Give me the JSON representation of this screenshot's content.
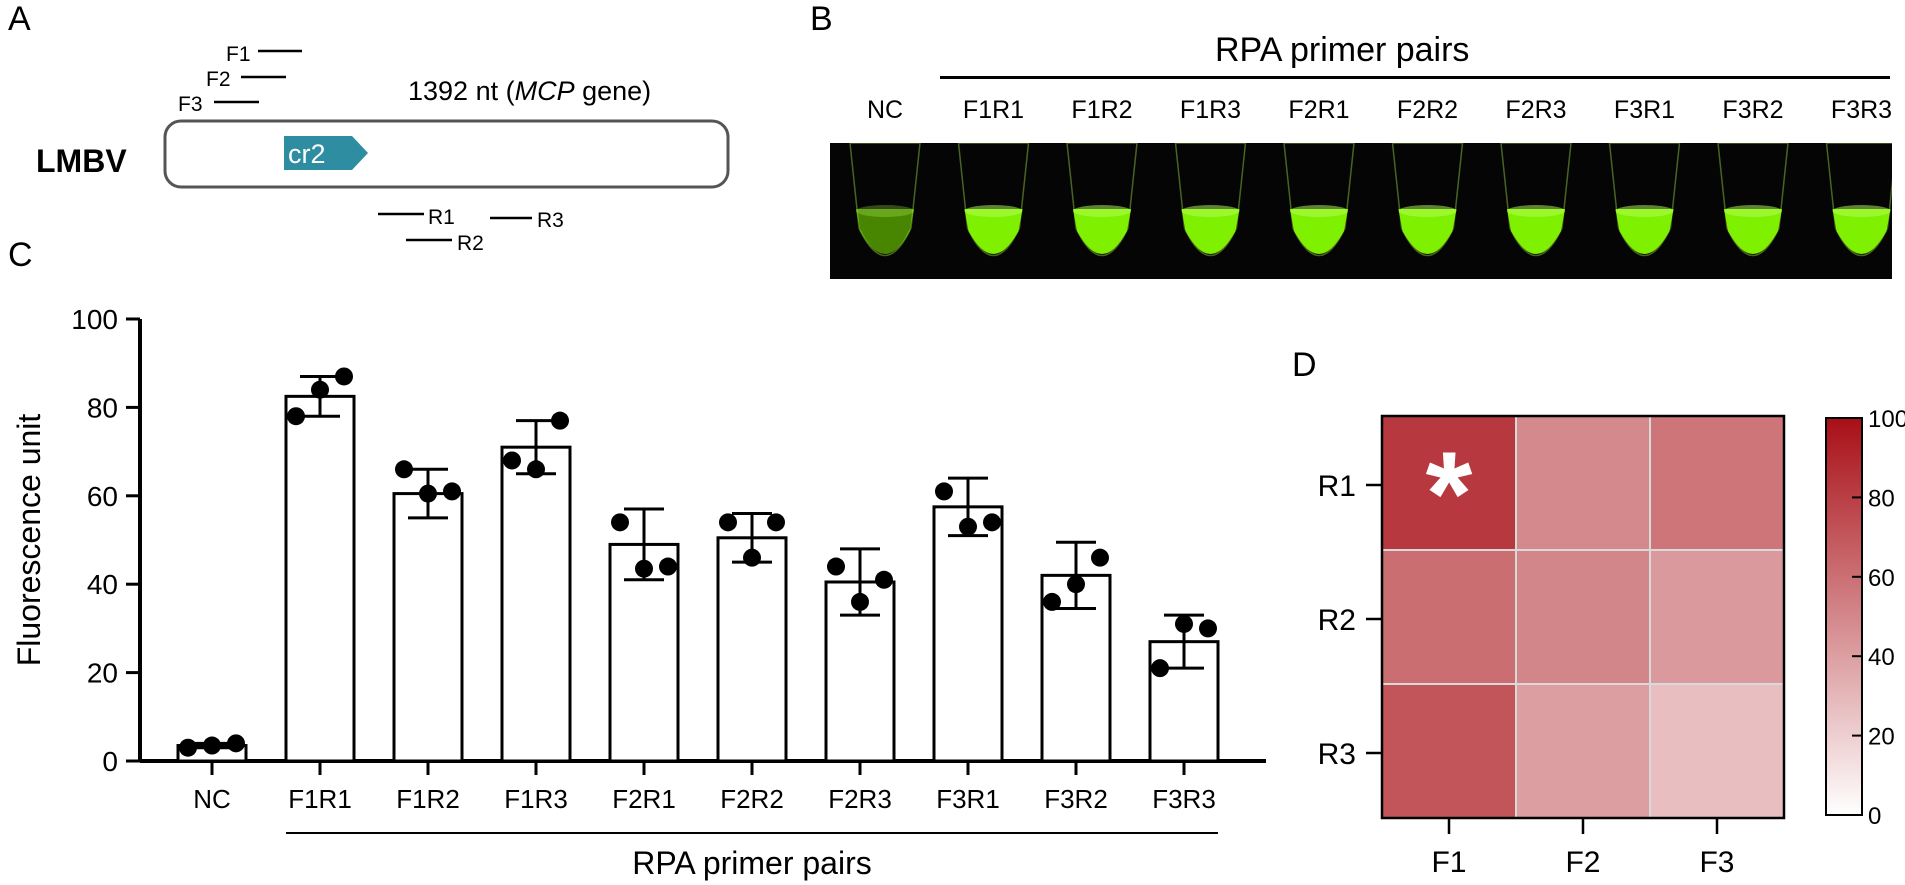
{
  "panels": {
    "a": "A",
    "b": "B",
    "c": "C",
    "d": "D"
  },
  "panel_a": {
    "virus_label": "LMBV",
    "gene_length": "1392 nt (",
    "gene_name": "MCP",
    "gene_suffix": " gene)",
    "crrna_label": "cr2",
    "forward_primers": [
      "F1",
      "F2",
      "F3"
    ],
    "reverse_primers": [
      "R1",
      "R2",
      "R3"
    ],
    "colors": {
      "box": "#555555",
      "crrna": "#2e8da0"
    }
  },
  "panel_b": {
    "header": "RPA primer pairs",
    "lanes": [
      "NC",
      "F1R1",
      "F1R2",
      "F1R3",
      "F2R1",
      "F2R2",
      "F2R3",
      "F3R1",
      "F3R2",
      "F3R3"
    ],
    "colors": {
      "background": "#050505",
      "fluorescence": "#7ff000"
    }
  },
  "chart_data": [
    {
      "type": "bar",
      "categories": [
        "NC",
        "F1R1",
        "F1R2",
        "F1R3",
        "F2R1",
        "F2R2",
        "F2R3",
        "F3R1",
        "F3R2",
        "F3R3"
      ],
      "values": [
        3.5,
        82.5,
        60.5,
        71,
        49,
        50.5,
        40.5,
        57.5,
        42,
        27
      ],
      "error": [
        0.5,
        4.5,
        5.5,
        6,
        8,
        5.5,
        7.5,
        6.5,
        7.5,
        6
      ],
      "points": [
        [
          3,
          3.5,
          4
        ],
        [
          78,
          84,
          87
        ],
        [
          66,
          60.5,
          61
        ],
        [
          68,
          66,
          77
        ],
        [
          54,
          43.5,
          44
        ],
        [
          54,
          46,
          54
        ],
        [
          44,
          36,
          41
        ],
        [
          61,
          53,
          54
        ],
        [
          36,
          40,
          46
        ],
        [
          21,
          31,
          30
        ]
      ],
      "ylabel": "Fluorescence unit",
      "xlabel": "RPA primer pairs",
      "ylim": [
        0,
        100
      ],
      "yticks": [
        0,
        20,
        40,
        60,
        80,
        100
      ],
      "grid": false
    },
    {
      "type": "heatmap",
      "x": [
        "F1",
        "F2",
        "F3"
      ],
      "y": [
        "R1",
        "R2",
        "R3"
      ],
      "values": [
        [
          82.5,
          49,
          57.5
        ],
        [
          60.5,
          50.5,
          42
        ],
        [
          71,
          40.5,
          27
        ]
      ],
      "annotation": "*",
      "colorbar": {
        "range": [
          0,
          100
        ],
        "ticks": [
          0,
          20,
          40,
          60,
          80,
          100
        ]
      },
      "colors": {
        "low": "#ffffff",
        "high": "#a80f16",
        "annotation": "#ffffff"
      }
    }
  ]
}
